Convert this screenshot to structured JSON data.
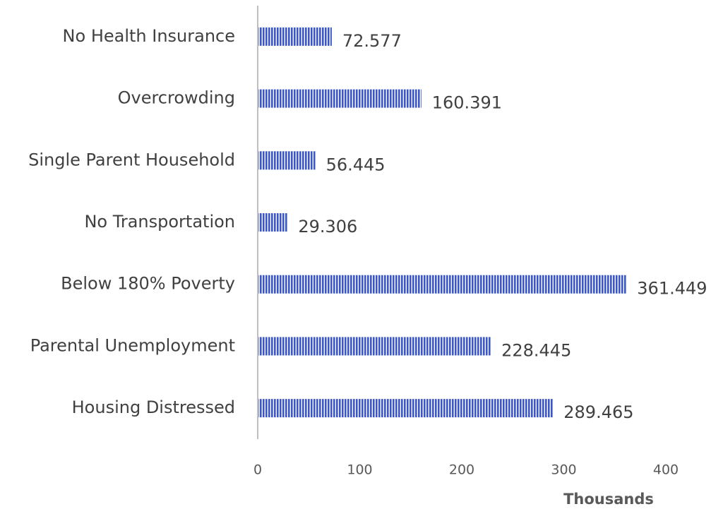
{
  "chart_data": {
    "type": "bar",
    "orientation": "horizontal",
    "categories": [
      "No Health Insurance",
      "Overcrowding",
      "Single Parent Household",
      "No Transportation",
      "Below 180% Poverty",
      "Parental Unemployment",
      "Housing Distressed"
    ],
    "values": [
      72.577,
      160.391,
      56.445,
      29.306,
      361.449,
      228.445,
      289.465
    ],
    "color": "#3a56c8",
    "x_label": "Thousands",
    "xlim": [
      0,
      400
    ],
    "xticks": [
      0,
      100,
      200,
      300,
      400
    ],
    "grid": false
  }
}
